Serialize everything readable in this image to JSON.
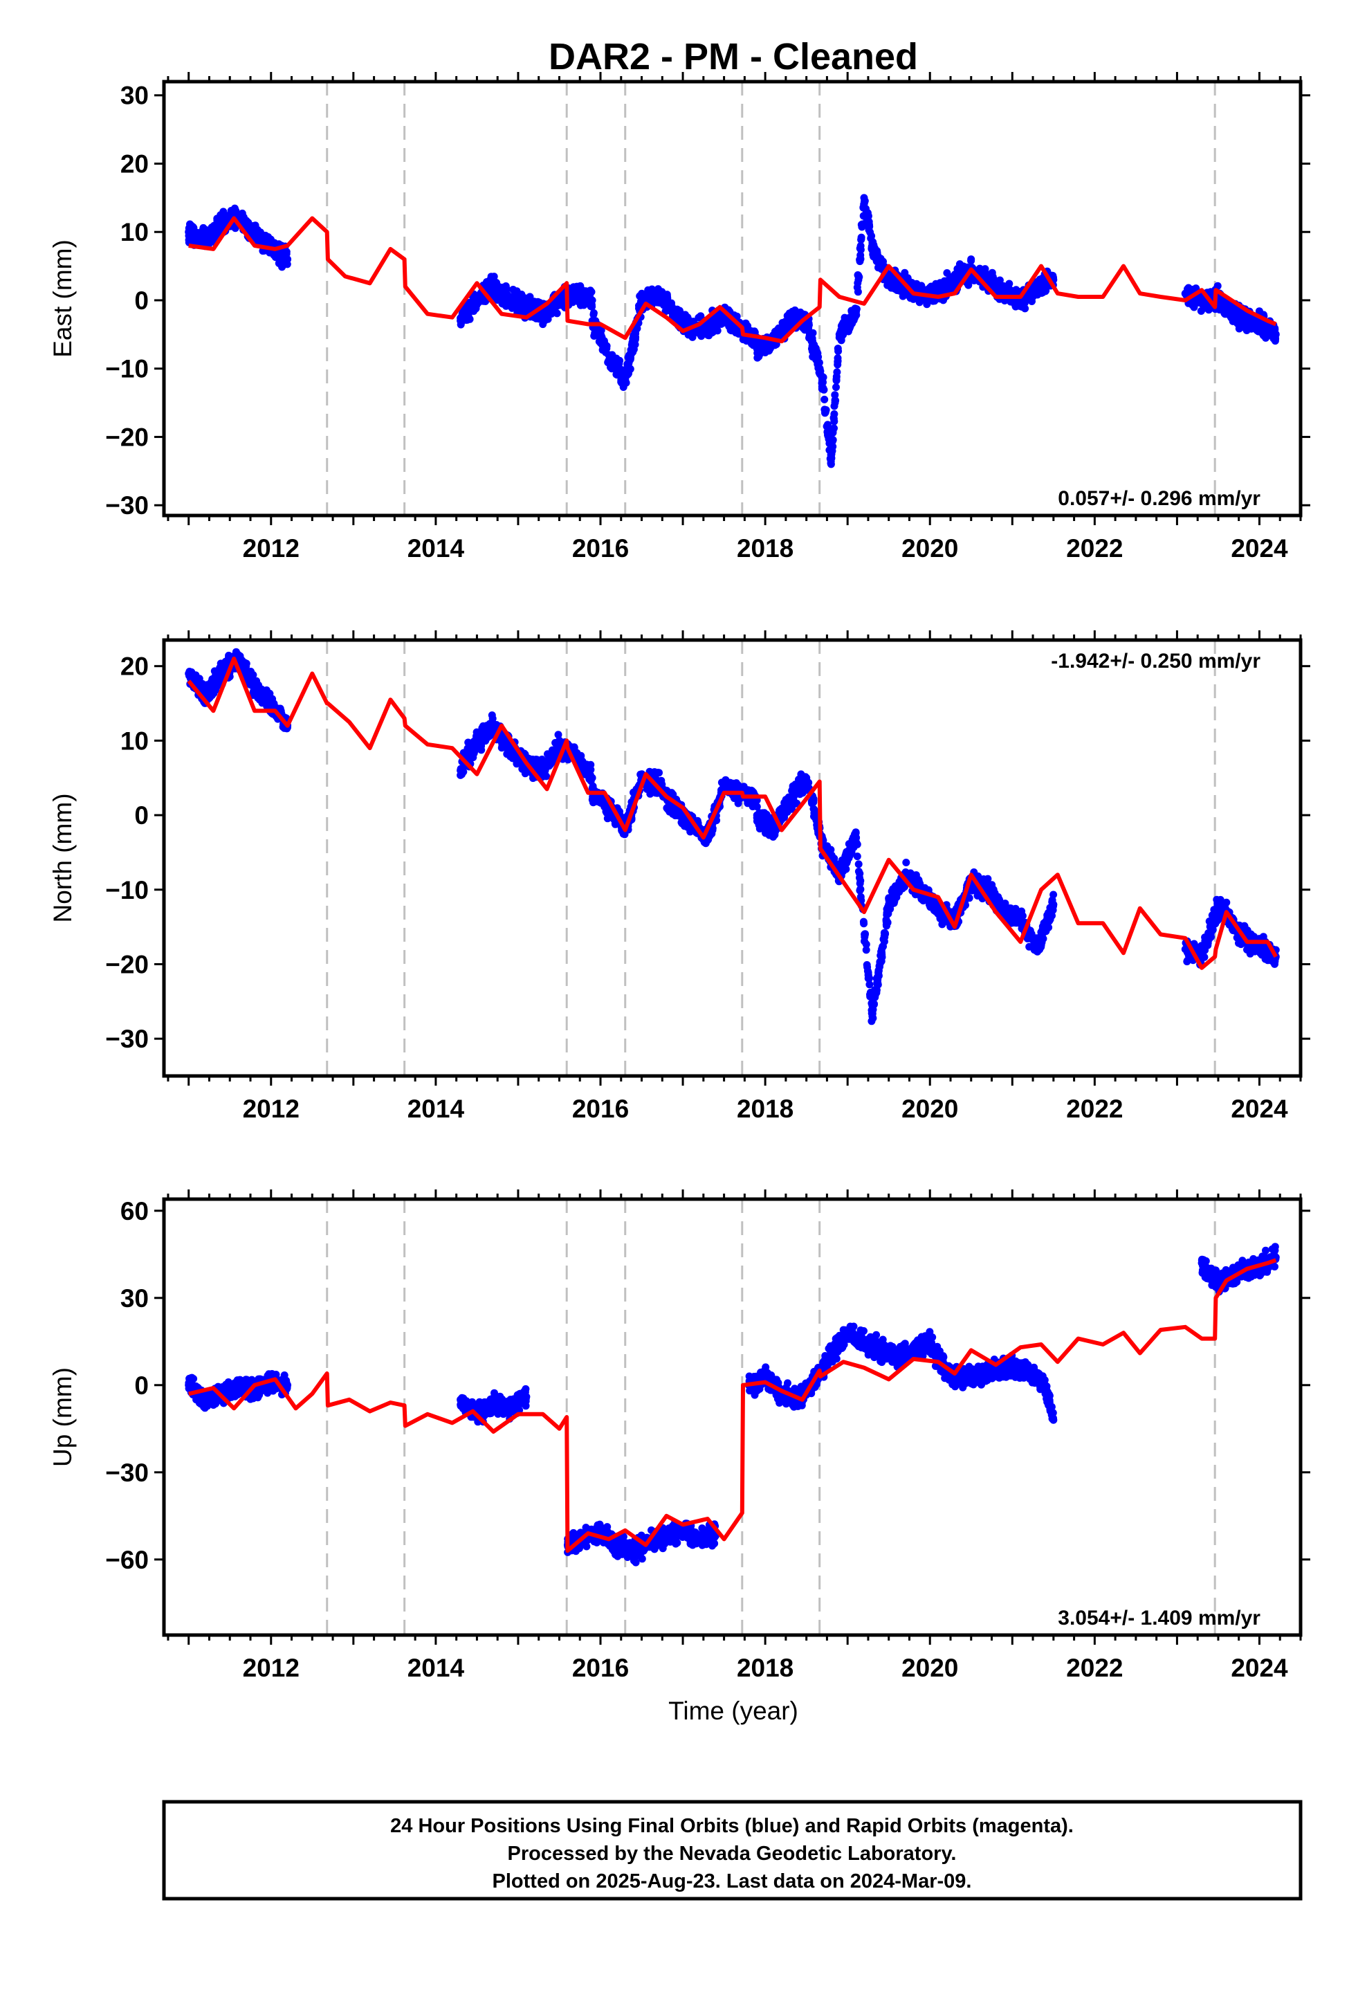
{
  "figure": {
    "title": "DAR2  - PM - Cleaned",
    "xlabel": "Time (year)",
    "caption": [
      "24 Hour Positions Using Final Orbits (blue) and Rapid Orbits (magenta).",
      "Processed by the Nevada Geodetic Laboratory.",
      "Plotted on 2025-Aug-23. Last data on 2024-Mar-09."
    ]
  },
  "colors": {
    "observations": "#0000ff",
    "model": "#ff0000",
    "breaks": "#c0c0c0",
    "frame": "#000000"
  },
  "chart_data": [
    {
      "type": "scatter",
      "component": "east",
      "ylabel": "East (mm)",
      "rate_text": "0.057+/- 0.296 mm/yr",
      "rate_position": "bottom-right",
      "xlim": [
        2010.7,
        2024.5
      ],
      "ylim": [
        -31.5,
        32
      ],
      "xticks": [
        2012,
        2014,
        2016,
        2018,
        2020,
        2022,
        2024
      ],
      "yticks": [
        30,
        20,
        10,
        0,
        -10,
        -20,
        -30
      ],
      "grid": false,
      "break_lines": [
        2012.68,
        2013.62,
        2015.59,
        2016.3,
        2017.72,
        2018.66,
        2023.46
      ],
      "data_segments": [
        {
          "x": [
            2011.0,
            2011.2,
            2011.4,
            2011.6,
            2011.8,
            2012.0,
            2012.2
          ],
          "y": [
            10,
            9,
            11,
            12,
            10,
            8,
            6
          ]
        },
        {
          "x": [
            2014.3,
            2014.5,
            2014.7,
            2014.9,
            2015.1,
            2015.3,
            2015.5,
            2015.7,
            2015.9
          ],
          "y": [
            -3,
            0,
            2,
            0,
            -1,
            -2,
            0,
            1,
            0
          ]
        },
        {
          "x": [
            2015.9,
            2016.1,
            2016.3,
            2016.5,
            2016.7,
            2016.9,
            2017.1,
            2017.3,
            2017.5,
            2017.7,
            2017.9
          ],
          "y": [
            -3,
            -8,
            -12,
            0,
            1,
            -2,
            -4,
            -4,
            -2,
            -4,
            -6
          ]
        },
        {
          "x": [
            2017.9,
            2018.1,
            2018.3,
            2018.5,
            2018.7,
            2018.8,
            2018.9,
            2019.1,
            2019.2,
            2019.3,
            2019.5,
            2019.7,
            2019.9,
            2020.1,
            2020.3,
            2020.5,
            2020.7,
            2020.9,
            2021.1,
            2021.3,
            2021.5
          ],
          "y": [
            -7,
            -6,
            -3,
            -3,
            -12,
            -24,
            -5,
            -2,
            15,
            8,
            3,
            2,
            1,
            1,
            3,
            4,
            3,
            1,
            0,
            2,
            3
          ]
        },
        {
          "x": [
            2023.1,
            2023.3,
            2023.5,
            2023.7,
            2023.9,
            2024.1,
            2024.2
          ],
          "y": [
            1,
            0,
            0,
            -2,
            -3,
            -4,
            -5
          ]
        }
      ],
      "model": {
        "x": [
          2011.0,
          2011.3,
          2011.55,
          2011.8,
          2012.05,
          2012.2,
          2012.5,
          2012.68,
          2012.69,
          2012.9,
          2013.2,
          2013.45,
          2013.62,
          2013.63,
          2013.9,
          2014.2,
          2014.5,
          2014.8,
          2015.1,
          2015.35,
          2015.59,
          2015.6,
          2015.85,
          2016.0,
          2016.3,
          2016.55,
          2016.8,
          2017.0,
          2017.2,
          2017.45,
          2017.72,
          2017.73,
          2018.0,
          2018.2,
          2018.45,
          2018.66,
          2018.67,
          2018.9,
          2019.2,
          2019.5,
          2019.8,
          2020.1,
          2020.3,
          2020.5,
          2020.8,
          2021.1,
          2021.35,
          2021.55,
          2021.8,
          2022.1,
          2022.35,
          2022.55,
          2022.8,
          2023.1,
          2023.3,
          2023.46,
          2023.47,
          2023.6,
          2023.85,
          2024.1,
          2024.2
        ],
        "y": [
          8,
          7.5,
          12,
          8,
          7.5,
          8,
          12,
          10,
          6,
          3.5,
          2.5,
          7.5,
          6,
          2,
          -2,
          -2.5,
          2.5,
          -2,
          -2.5,
          -0.5,
          2.5,
          -3,
          -3.5,
          -3.5,
          -5.5,
          -0.5,
          -2.5,
          -4.5,
          -3.5,
          -1,
          -4,
          -5,
          -5.5,
          -6,
          -3,
          -1,
          3,
          0.5,
          -0.5,
          5,
          1,
          0.5,
          1,
          4.5,
          0.5,
          0.5,
          5,
          1,
          0.5,
          0.5,
          5,
          1,
          0.5,
          0,
          1.5,
          -1,
          1.5,
          0.5,
          -1.5,
          -3,
          -3.5
        ]
      }
    },
    {
      "type": "scatter",
      "component": "north",
      "ylabel": "North (mm)",
      "rate_text": "-1.942+/- 0.250 mm/yr",
      "rate_position": "top-right",
      "xlim": [
        2010.7,
        2024.5
      ],
      "ylim": [
        -35,
        23.5
      ],
      "xticks": [
        2012,
        2014,
        2016,
        2018,
        2020,
        2022,
        2024
      ],
      "yticks": [
        20,
        10,
        0,
        -10,
        -20,
        -30
      ],
      "grid": false,
      "break_lines": [
        2012.68,
        2013.62,
        2015.59,
        2016.3,
        2017.72,
        2018.66,
        2023.46
      ],
      "data_segments": [
        {
          "x": [
            2011.0,
            2011.2,
            2011.4,
            2011.6,
            2011.8,
            2012.0,
            2012.2
          ],
          "y": [
            19,
            16,
            19,
            21,
            17,
            15,
            12
          ]
        },
        {
          "x": [
            2014.3,
            2014.5,
            2014.7,
            2014.9,
            2015.1,
            2015.3,
            2015.5,
            2015.7,
            2015.9
          ],
          "y": [
            6,
            10,
            12,
            9,
            7,
            6,
            9,
            8,
            5
          ]
        },
        {
          "x": [
            2015.9,
            2016.1,
            2016.3,
            2016.5,
            2016.7,
            2016.9,
            2017.1,
            2017.3,
            2017.5,
            2017.7,
            2017.9
          ],
          "y": [
            3,
            1,
            -2,
            5,
            4,
            1,
            -1,
            -3,
            4,
            3,
            2
          ]
        },
        {
          "x": [
            2017.9,
            2018.1,
            2018.3,
            2018.5,
            2018.7,
            2018.9,
            2019.1,
            2019.3,
            2019.5,
            2019.7,
            2019.9,
            2020.1,
            2020.3,
            2020.5,
            2020.7,
            2020.9,
            2021.1,
            2021.3,
            2021.5
          ],
          "y": [
            0,
            -2,
            2,
            5,
            -4,
            -8,
            -3,
            -27,
            -12,
            -8,
            -10,
            -13,
            -14,
            -9,
            -10,
            -13,
            -14,
            -18,
            -12
          ]
        },
        {
          "x": [
            2023.1,
            2023.3,
            2023.5,
            2023.7,
            2023.9,
            2024.1,
            2024.2
          ],
          "y": [
            -18,
            -19,
            -12,
            -15,
            -17,
            -18,
            -19
          ]
        }
      ],
      "model": {
        "x": [
          2011.0,
          2011.3,
          2011.55,
          2011.8,
          2012.05,
          2012.2,
          2012.5,
          2012.68,
          2012.69,
          2012.95,
          2013.2,
          2013.45,
          2013.62,
          2013.63,
          2013.9,
          2014.2,
          2014.5,
          2014.8,
          2015.1,
          2015.35,
          2015.59,
          2015.6,
          2015.85,
          2016.05,
          2016.3,
          2016.55,
          2016.8,
          2017.0,
          2017.25,
          2017.5,
          2017.72,
          2017.73,
          2018.0,
          2018.2,
          2018.45,
          2018.66,
          2018.67,
          2018.95,
          2019.2,
          2019.5,
          2019.8,
          2020.1,
          2020.3,
          2020.5,
          2020.8,
          2021.1,
          2021.35,
          2021.55,
          2021.8,
          2022.1,
          2022.35,
          2022.55,
          2022.8,
          2023.1,
          2023.3,
          2023.46,
          2023.47,
          2023.6,
          2023.85,
          2024.1,
          2024.2
        ],
        "y": [
          18,
          14,
          21,
          14,
          14,
          12,
          19,
          15,
          15,
          12.5,
          9,
          15.5,
          13,
          12,
          9.5,
          9,
          5.5,
          12,
          7,
          3.5,
          10,
          9,
          3,
          3,
          -2,
          5.5,
          2.5,
          1,
          -3,
          3,
          3,
          2.5,
          2.5,
          -2,
          1.5,
          4.5,
          -4.5,
          -9,
          -13,
          -6,
          -10,
          -11,
          -15,
          -8,
          -13,
          -17,
          -10,
          -8,
          -14.5,
          -14.5,
          -18.5,
          -12.5,
          -16,
          -16.5,
          -20.5,
          -19,
          -18,
          -13,
          -17,
          -17,
          -19
        ]
      }
    },
    {
      "type": "scatter",
      "component": "up",
      "ylabel": "Up (mm)",
      "rate_text": "3.054+/- 1.409 mm/yr",
      "rate_position": "bottom-right",
      "xlim": [
        2010.7,
        2024.5
      ],
      "ylim": [
        -86,
        64
      ],
      "xticks": [
        2012,
        2014,
        2016,
        2018,
        2020,
        2022,
        2024
      ],
      "yticks": [
        60,
        30,
        0,
        -30,
        -60
      ],
      "grid": false,
      "break_lines": [
        2012.68,
        2013.62,
        2015.59,
        2016.3,
        2017.72,
        2018.66,
        2023.46
      ],
      "data_segments": [
        {
          "x": [
            2011.0,
            2011.2,
            2011.4,
            2011.6,
            2011.8,
            2012.0,
            2012.2
          ],
          "y": [
            0,
            -5,
            -3,
            0,
            -2,
            1,
            0
          ]
        },
        {
          "x": [
            2014.3,
            2014.5,
            2014.7,
            2014.9,
            2015.1
          ],
          "y": [
            -5,
            -10,
            -6,
            -8,
            -4
          ]
        },
        {
          "x": [
            2015.6,
            2015.8,
            2016.0,
            2016.2,
            2016.4,
            2016.6,
            2016.8,
            2017.0,
            2017.2,
            2017.4
          ],
          "y": [
            -55,
            -53,
            -50,
            -55,
            -57,
            -54,
            -52,
            -50,
            -53,
            -51
          ]
        },
        {
          "x": [
            2017.8,
            2018.0,
            2018.2,
            2018.4,
            2018.6,
            2018.8,
            2019.0,
            2019.2,
            2019.4,
            2019.6,
            2019.8,
            2020.0,
            2020.2,
            2020.4,
            2020.6,
            2020.8,
            2021.0,
            2021.2,
            2021.4,
            2021.5
          ],
          "y": [
            0,
            3,
            -3,
            -5,
            2,
            10,
            18,
            15,
            12,
            10,
            12,
            15,
            5,
            2,
            4,
            5,
            6,
            5,
            0,
            -12
          ]
        },
        {
          "x": [
            2023.3,
            2023.5,
            2023.7,
            2023.9,
            2024.1,
            2024.2
          ],
          "y": [
            42,
            35,
            38,
            40,
            42,
            44
          ]
        }
      ],
      "model": {
        "x": [
          2011.0,
          2011.3,
          2011.55,
          2011.8,
          2012.05,
          2012.3,
          2012.5,
          2012.68,
          2012.69,
          2012.95,
          2013.2,
          2013.45,
          2013.62,
          2013.63,
          2013.9,
          2014.2,
          2014.45,
          2014.7,
          2015.0,
          2015.3,
          2015.5,
          2015.59,
          2015.6,
          2015.85,
          2016.1,
          2016.3,
          2016.55,
          2016.8,
          2017.0,
          2017.3,
          2017.5,
          2017.72,
          2017.73,
          2018.0,
          2018.2,
          2018.45,
          2018.66,
          2018.67,
          2018.95,
          2019.2,
          2019.5,
          2019.8,
          2020.1,
          2020.3,
          2020.5,
          2020.8,
          2021.1,
          2021.35,
          2021.55,
          2021.8,
          2022.1,
          2022.35,
          2022.55,
          2022.8,
          2023.1,
          2023.3,
          2023.46,
          2023.47,
          2023.6,
          2023.85,
          2024.1,
          2024.2
        ],
        "y": [
          -3,
          -1,
          -8,
          0,
          2,
          -8,
          -3,
          4,
          -7,
          -5,
          -9,
          -6,
          -7,
          -14,
          -10,
          -13,
          -9,
          -16,
          -10,
          -10,
          -15,
          -11,
          -57,
          -51,
          -53,
          -50,
          -55,
          -45,
          -48,
          -46,
          -53,
          -44,
          0,
          1,
          -2,
          -5,
          5,
          3,
          8,
          6,
          2,
          9,
          8,
          4,
          12,
          7,
          13,
          14,
          8,
          16,
          14,
          18,
          11,
          19,
          20,
          16,
          16,
          30,
          36,
          40,
          42,
          43
        ]
      }
    }
  ]
}
